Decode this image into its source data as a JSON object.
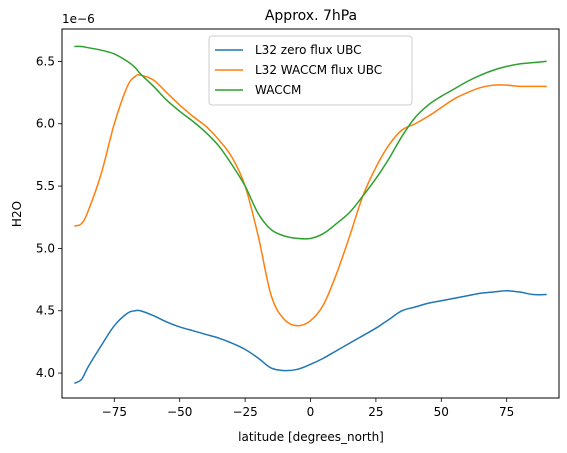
{
  "chart_data": {
    "type": "line",
    "title": "Approx. 7hPa",
    "xlabel": "latitude [degrees_north]",
    "ylabel": "H2O",
    "y_offset_label": "1e−6",
    "xlim": [
      -95,
      95
    ],
    "ylim": [
      3.8,
      6.76
    ],
    "x_ticks": [
      -75,
      -50,
      -25,
      0,
      25,
      50,
      75
    ],
    "x_tick_labels": [
      "−75",
      "−50",
      "−25",
      "0",
      "25",
      "50",
      "75"
    ],
    "y_ticks": [
      4.0,
      4.5,
      5.0,
      5.5,
      6.0,
      6.5
    ],
    "y_tick_labels": [
      "4.0",
      "4.5",
      "5.0",
      "5.5",
      "6.0",
      "6.5"
    ],
    "grid": false,
    "legend_position": "top-center",
    "x": [
      -90,
      -87.5,
      -85,
      -80,
      -75,
      -70,
      -67,
      -65,
      -60,
      -55,
      -50,
      -45,
      -40,
      -35,
      -30,
      -25,
      -20,
      -15,
      -10,
      -5,
      0,
      5,
      10,
      15,
      20,
      25,
      30,
      35,
      40,
      45,
      50,
      55,
      60,
      65,
      70,
      75,
      80,
      85,
      90
    ],
    "series": [
      {
        "name": "L32 zero flux UBC",
        "color": "#1f77b4",
        "values": [
          3.92,
          3.95,
          4.05,
          4.22,
          4.38,
          4.48,
          4.5,
          4.5,
          4.46,
          4.41,
          4.37,
          4.34,
          4.31,
          4.28,
          4.24,
          4.19,
          4.12,
          4.04,
          4.02,
          4.03,
          4.07,
          4.12,
          4.18,
          4.24,
          4.3,
          4.36,
          4.43,
          4.5,
          4.53,
          4.56,
          4.58,
          4.6,
          4.62,
          4.64,
          4.65,
          4.66,
          4.65,
          4.63,
          4.63
        ]
      },
      {
        "name": "L32 WACCM flux UBC",
        "color": "#ff7f0e",
        "values": [
          5.18,
          5.2,
          5.3,
          5.6,
          6.0,
          6.3,
          6.38,
          6.39,
          6.35,
          6.25,
          6.15,
          6.06,
          5.98,
          5.87,
          5.73,
          5.5,
          5.1,
          4.62,
          4.43,
          4.38,
          4.42,
          4.55,
          4.8,
          5.1,
          5.42,
          5.65,
          5.83,
          5.95,
          6.0,
          6.06,
          6.13,
          6.2,
          6.25,
          6.29,
          6.31,
          6.31,
          6.3,
          6.3,
          6.3
        ]
      },
      {
        "name": "WACCM",
        "color": "#2ca02c",
        "values": [
          6.62,
          6.62,
          6.61,
          6.59,
          6.56,
          6.5,
          6.45,
          6.4,
          6.3,
          6.19,
          6.1,
          6.02,
          5.93,
          5.82,
          5.67,
          5.5,
          5.28,
          5.15,
          5.1,
          5.08,
          5.08,
          5.12,
          5.2,
          5.29,
          5.42,
          5.56,
          5.72,
          5.9,
          6.05,
          6.15,
          6.22,
          6.28,
          6.34,
          6.39,
          6.43,
          6.46,
          6.48,
          6.49,
          6.5
        ]
      }
    ]
  }
}
